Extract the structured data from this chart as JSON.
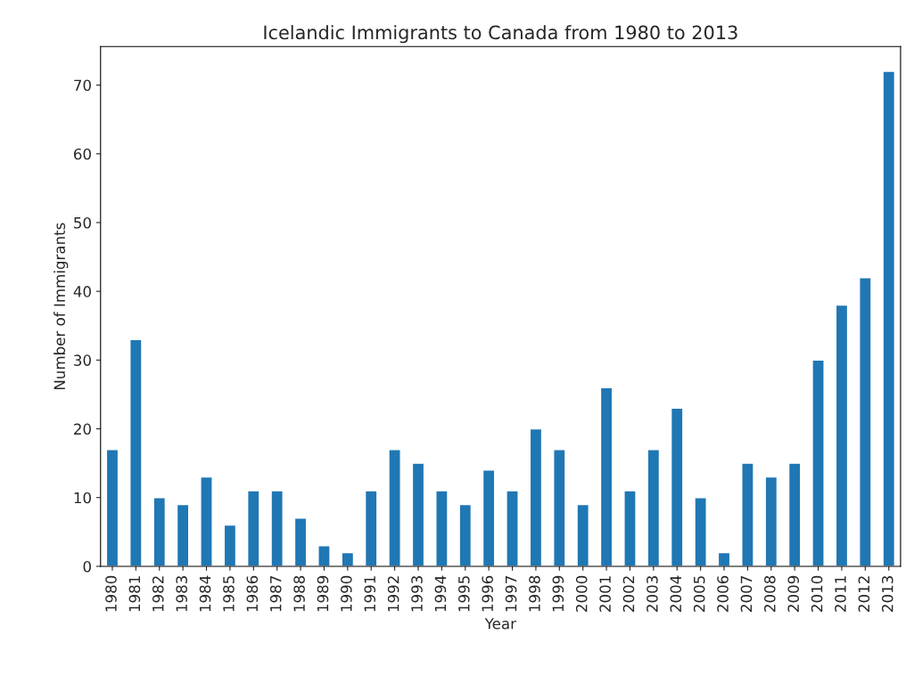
{
  "chart_data": {
    "type": "bar",
    "title": "Icelandic Immigrants to Canada from 1980 to 2013",
    "xlabel": "Year",
    "ylabel": "Number of Immigrants",
    "categories": [
      "1980",
      "1981",
      "1982",
      "1983",
      "1984",
      "1985",
      "1986",
      "1987",
      "1988",
      "1989",
      "1990",
      "1991",
      "1992",
      "1993",
      "1994",
      "1995",
      "1996",
      "1997",
      "1998",
      "1999",
      "2000",
      "2001",
      "2002",
      "2003",
      "2004",
      "2005",
      "2006",
      "2007",
      "2008",
      "2009",
      "2010",
      "2011",
      "2012",
      "2013"
    ],
    "values": [
      17,
      33,
      10,
      9,
      13,
      6,
      11,
      11,
      7,
      3,
      2,
      11,
      17,
      15,
      11,
      9,
      14,
      11,
      20,
      17,
      9,
      26,
      11,
      17,
      23,
      10,
      2,
      15,
      13,
      15,
      30,
      38,
      42,
      72
    ],
    "color": "#1f77b4",
    "ylim": [
      0,
      75.6
    ],
    "yticks": [
      0,
      10,
      20,
      30,
      40,
      50,
      60,
      70
    ],
    "grid": false,
    "legend": false
  }
}
